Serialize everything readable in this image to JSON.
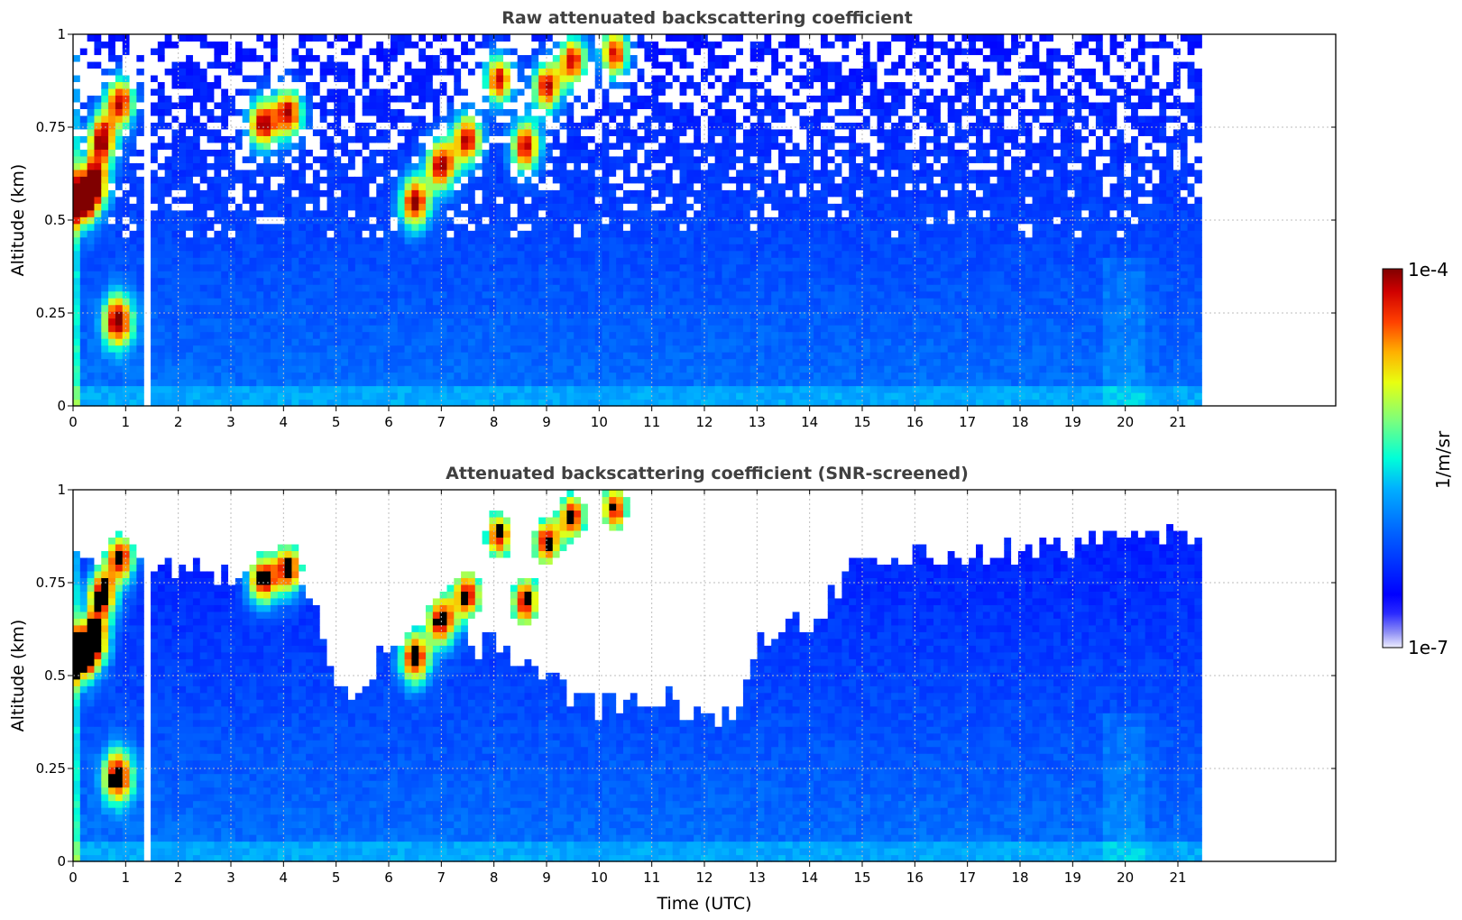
{
  "chart_data": [
    {
      "type": "heatmap",
      "title": "Raw attenuated backscattering coefficient",
      "xlabel": "",
      "ylabel": "Altitude (km)",
      "xlim": [
        0,
        24
      ],
      "ylim": [
        0,
        1
      ],
      "x_ticks": [
        0,
        1,
        2,
        3,
        4,
        5,
        6,
        7,
        8,
        9,
        10,
        11,
        12,
        13,
        14,
        15,
        16,
        17,
        18,
        19,
        20,
        21
      ],
      "y_ticks": [
        0,
        0.25,
        0.5,
        0.75,
        1
      ],
      "y_tick_labels": [
        "0",
        "0.25",
        "0.5",
        "0.75",
        "1"
      ],
      "data_time_range": [
        0,
        21.45
      ],
      "gap_time": 1.45,
      "grid": true,
      "screened": false,
      "cloud_events": [
        {
          "t": 0.15,
          "z": 0.55
        },
        {
          "t": 0.4,
          "z": 0.6
        },
        {
          "t": 0.55,
          "z": 0.72
        },
        {
          "t": 0.9,
          "z": 0.82
        },
        {
          "t": 0.85,
          "z": 0.23
        },
        {
          "t": 3.6,
          "z": 0.76
        },
        {
          "t": 4.1,
          "z": 0.79
        },
        {
          "t": 6.5,
          "z": 0.55
        },
        {
          "t": 7.0,
          "z": 0.65
        },
        {
          "t": 7.5,
          "z": 0.72
        },
        {
          "t": 8.1,
          "z": 0.88
        },
        {
          "t": 8.6,
          "z": 0.7
        },
        {
          "t": 9.0,
          "z": 0.86
        },
        {
          "t": 9.5,
          "z": 0.93
        },
        {
          "t": 10.3,
          "z": 0.95
        }
      ]
    },
    {
      "type": "heatmap",
      "title": "Attenuated backscattering coefficient (SNR-screened)",
      "xlabel": "Time (UTC)",
      "ylabel": "Altitude (km)",
      "xlim": [
        0,
        24
      ],
      "ylim": [
        0,
        1
      ],
      "x_ticks": [
        0,
        1,
        2,
        3,
        4,
        5,
        6,
        7,
        8,
        9,
        10,
        11,
        12,
        13,
        14,
        15,
        16,
        17,
        18,
        19,
        20,
        21
      ],
      "y_ticks": [
        0,
        0.25,
        0.5,
        0.75,
        1
      ],
      "y_tick_labels": [
        "0",
        "0.25",
        "0.5",
        "0.75",
        "1"
      ],
      "data_time_range": [
        0,
        21.45
      ],
      "gap_time": 1.45,
      "grid": true,
      "screened": true,
      "cloud_events": [
        {
          "t": 0.15,
          "z": 0.55
        },
        {
          "t": 0.4,
          "z": 0.6
        },
        {
          "t": 0.55,
          "z": 0.72
        },
        {
          "t": 0.9,
          "z": 0.82
        },
        {
          "t": 0.85,
          "z": 0.23
        },
        {
          "t": 3.6,
          "z": 0.76
        },
        {
          "t": 4.1,
          "z": 0.79
        },
        {
          "t": 6.5,
          "z": 0.55
        },
        {
          "t": 7.0,
          "z": 0.65
        },
        {
          "t": 7.5,
          "z": 0.72
        },
        {
          "t": 8.1,
          "z": 0.88
        },
        {
          "t": 8.6,
          "z": 0.7
        },
        {
          "t": 9.0,
          "z": 0.86
        },
        {
          "t": 9.5,
          "z": 0.93
        },
        {
          "t": 10.3,
          "z": 0.95
        }
      ],
      "screen_boundary": [
        {
          "t": 1.5,
          "z": 0.8
        },
        {
          "t": 3.0,
          "z": 0.76
        },
        {
          "t": 4.5,
          "z": 0.74
        },
        {
          "t": 5.0,
          "z": 0.5
        },
        {
          "t": 5.5,
          "z": 0.45
        },
        {
          "t": 6.0,
          "z": 0.6
        },
        {
          "t": 7.0,
          "z": 0.62
        },
        {
          "t": 8.0,
          "z": 0.58
        },
        {
          "t": 9.0,
          "z": 0.5
        },
        {
          "t": 10.0,
          "z": 0.42
        },
        {
          "t": 11.0,
          "z": 0.45
        },
        {
          "t": 12.0,
          "z": 0.4
        },
        {
          "t": 12.6,
          "z": 0.38
        },
        {
          "t": 13.0,
          "z": 0.6
        },
        {
          "t": 14.0,
          "z": 0.65
        },
        {
          "t": 15.0,
          "z": 0.8
        },
        {
          "t": 17.0,
          "z": 0.82
        },
        {
          "t": 19.0,
          "z": 0.85
        },
        {
          "t": 21.4,
          "z": 0.9
        }
      ]
    }
  ],
  "colorbar": {
    "label": "1/m/sr",
    "max_label": "1e-4",
    "min_label": "1e-7",
    "colormap": "jet"
  }
}
